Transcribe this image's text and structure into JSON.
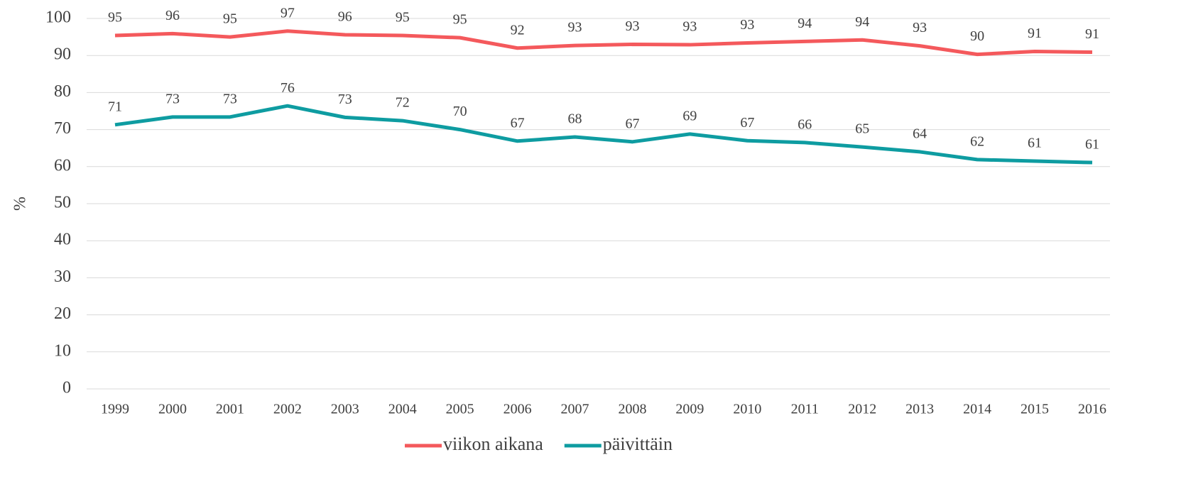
{
  "chart_data": {
    "type": "line",
    "y_label": "%",
    "categories": [
      "1999",
      "2000",
      "2001",
      "2002",
      "2003",
      "2004",
      "2005",
      "2006",
      "2007",
      "2008",
      "2009",
      "2010",
      "2011",
      "2012",
      "2013",
      "2014",
      "2015",
      "2016"
    ],
    "series": [
      {
        "name": "viikon aikana",
        "color": "#f4595c",
        "values": [
          95.4,
          95.9,
          95.0,
          96.6,
          95.6,
          95.4,
          94.8,
          92.0,
          92.7,
          93.0,
          92.9,
          93.4,
          93.8,
          94.2,
          92.6,
          90.3,
          91.1,
          90.9
        ],
        "value_labels": [
          "95",
          "96",
          "95",
          "97",
          "96",
          "95",
          "95",
          "92",
          "93",
          "93",
          "93",
          "93",
          "94",
          "94",
          "93",
          "90",
          "91",
          "91"
        ]
      },
      {
        "name": "päivittäin",
        "color": "#0e9ca1",
        "values": [
          71.3,
          73.4,
          73.4,
          76.4,
          73.3,
          72.4,
          70.0,
          66.9,
          68.0,
          66.7,
          68.8,
          67.0,
          66.5,
          65.3,
          64.0,
          61.9,
          61.5,
          61.1
        ],
        "value_labels": [
          "71",
          "73",
          "73",
          "76",
          "73",
          "72",
          "70",
          "67",
          "68",
          "67",
          "69",
          "67",
          "66",
          "65",
          "64",
          "62",
          "61",
          "61"
        ]
      }
    ],
    "ylim": [
      0,
      100
    ],
    "yticks": [
      0,
      10,
      20,
      30,
      40,
      50,
      60,
      70,
      80,
      90,
      100
    ],
    "grid": true,
    "legend": "bottom"
  }
}
